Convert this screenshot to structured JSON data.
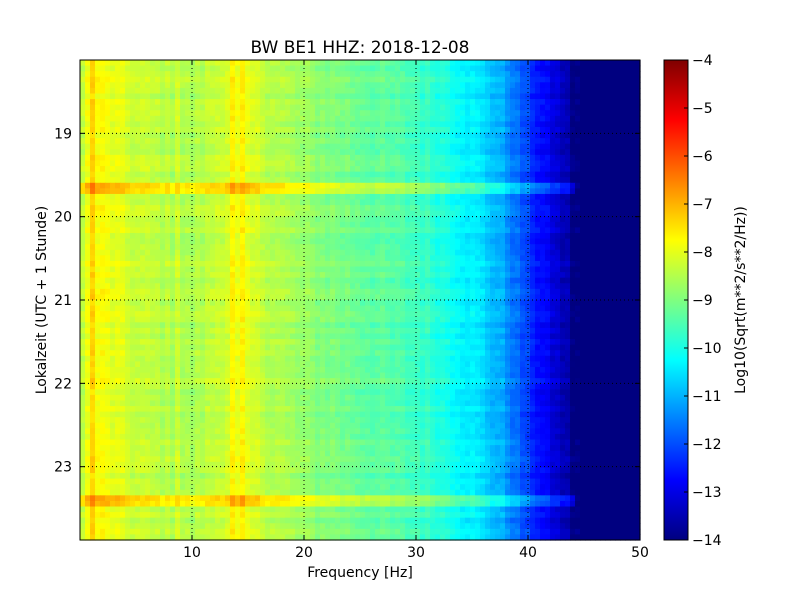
{
  "chart_data": {
    "type": "heatmap",
    "title": "BW BE1 HHZ: 2018-12-08",
    "xlabel": "Frequency [Hz]",
    "ylabel": "Lokalzeit (UTC + 1 Stunde)",
    "xlim": [
      0,
      50
    ],
    "ylim": [
      18.12,
      23.88
    ],
    "y_inverted": true,
    "x_ticks": [
      10,
      20,
      30,
      40,
      50
    ],
    "y_ticks": [
      19,
      20,
      21,
      22,
      23
    ],
    "grid": true,
    "colormap": "jet",
    "colorbar": {
      "label": "Log10(Sqrt(m**2/s**2/Hz))",
      "range": [
        -14,
        -4
      ],
      "ticks": [
        -4,
        -5,
        -6,
        -7,
        -8,
        -9,
        -10,
        -11,
        -12,
        -13,
        -14
      ]
    },
    "frequency_profile": [
      {
        "freq": 0,
        "value": -8.4
      },
      {
        "freq": 1,
        "value": -7.7
      },
      {
        "freq": 5,
        "value": -8.3
      },
      {
        "freq": 10,
        "value": -8.6
      },
      {
        "freq": 14,
        "value": -8.0
      },
      {
        "freq": 20,
        "value": -8.8
      },
      {
        "freq": 25,
        "value": -9.2
      },
      {
        "freq": 30,
        "value": -9.6
      },
      {
        "freq": 33,
        "value": -10.0
      },
      {
        "freq": 36,
        "value": -10.6
      },
      {
        "freq": 38,
        "value": -11.2
      },
      {
        "freq": 40,
        "value": -12.2
      },
      {
        "freq": 42,
        "value": -13.0
      },
      {
        "freq": 43.6,
        "value": -13.6
      },
      {
        "freq": 44,
        "value": -14.0
      },
      {
        "freq": 50,
        "value": -14.0
      }
    ],
    "strong_lines_hz": [
      1.0,
      8.8,
      13.6,
      14.4
    ],
    "bright_time_bands": [
      19.67,
      23.43
    ]
  }
}
